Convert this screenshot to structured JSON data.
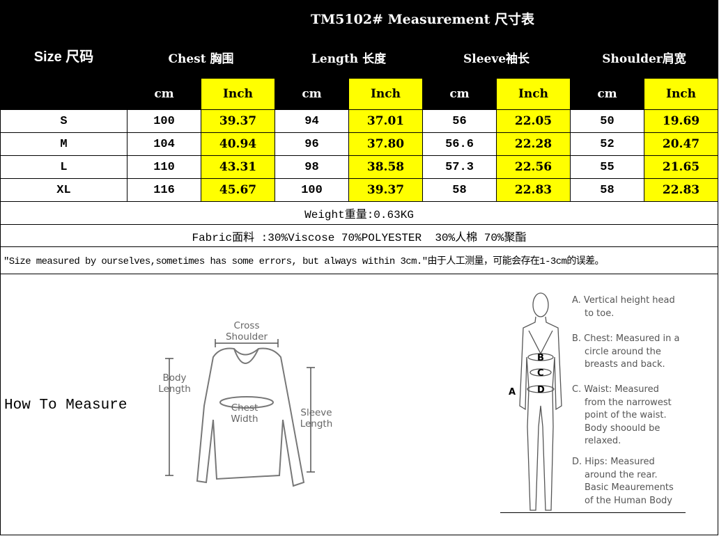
{
  "title": "TM5102# Measurement 尺寸表",
  "size_header": "Size 尺码",
  "groups": [
    "Chest 胸围",
    "Length 长度",
    "Sleeve袖长",
    "Shoulder肩宽"
  ],
  "units": {
    "cm": "cm",
    "inch": "Inch"
  },
  "rows": [
    {
      "size": "S",
      "values": [
        "100",
        "39.37",
        "94",
        "37.01",
        "56",
        "22.05",
        "50",
        "19.69"
      ]
    },
    {
      "size": "M",
      "values": [
        "104",
        "40.94",
        "96",
        "37.80",
        "56.6",
        "22.28",
        "52",
        "20.47"
      ]
    },
    {
      "size": "L",
      "values": [
        "110",
        "43.31",
        "98",
        "38.58",
        "57.3",
        "22.56",
        "55",
        "21.65"
      ]
    },
    {
      "size": "XL",
      "values": [
        "116",
        "45.67",
        "100",
        "39.37",
        "58",
        "22.83",
        "58",
        "22.83"
      ]
    }
  ],
  "weight": "Weight重量:0.63KG",
  "fabric": "Fabric面料 :30%Viscose 70%POLYESTER  30%人棉 70%聚酯",
  "disclaimer": "\"Size measured by ourselves,sometimes has some errors, but always within 3cm.\"由于人工测量，可能会存在1-3cm的误差。",
  "how_to_measure": "How To Measure",
  "sweater_labels": {
    "shoulder": "Cross Shoulder",
    "body": "Body Length",
    "chest": "Chest Width",
    "sleeve": "Sleeve Length"
  },
  "body_letters": [
    "A",
    "B",
    "C",
    "D"
  ],
  "notes": [
    [
      "A. Vertical height head",
      "to toe."
    ],
    [
      "B. Chest: Measured in a",
      "circle around the",
      "breasts and back."
    ],
    [
      "C. Waist: Measured",
      "from the narrowest",
      "point of the waist.",
      "Body shoould be",
      "relaxed."
    ],
    [
      "D. Hips: Measured",
      "around the rear.",
      "Basic Meaurements",
      "of the Human Body"
    ]
  ],
  "colors": {
    "header_bg": "#000000",
    "inch_bg": "#ffff00"
  }
}
